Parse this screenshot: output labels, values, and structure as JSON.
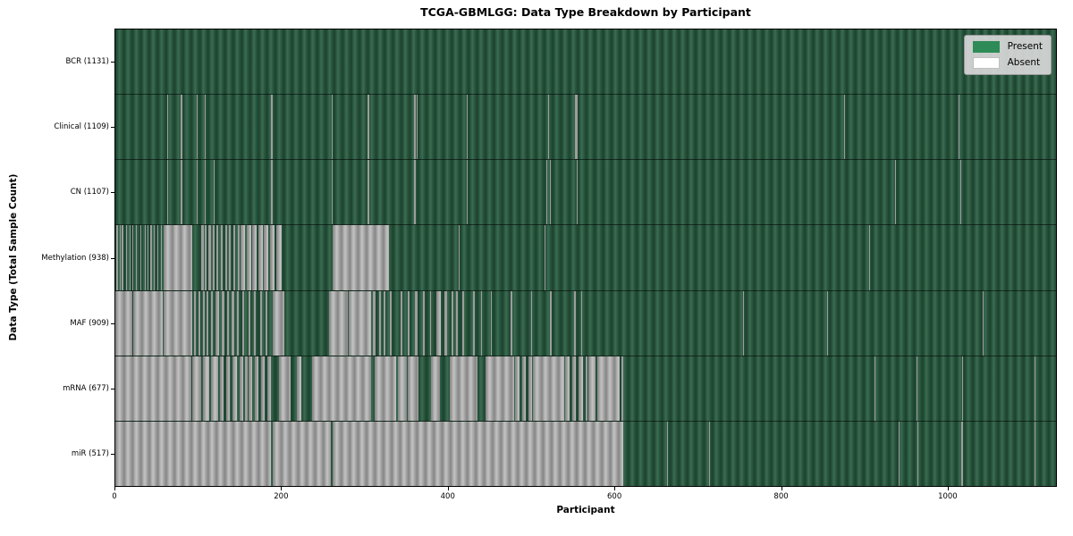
{
  "chart_data": {
    "type": "heatmap",
    "title": "TCGA-GBMLGG: Data Type Breakdown by Participant",
    "xlabel": "Participant",
    "ylabel": "Data Type (Total Sample Count)",
    "x_range": [
      0,
      1131
    ],
    "x_ticks": [
      0,
      200,
      400,
      600,
      800,
      1000
    ],
    "legend": [
      {
        "label": "Present",
        "color": "#2e8b57"
      },
      {
        "label": "Absent",
        "color": "#ffffff"
      }
    ],
    "colors": {
      "present_fill": "#2e8b57",
      "absent_fill": "#ffffff",
      "present_render_mid": "#2d5c43",
      "absent_render_mid": "#ababab",
      "axis": "#000000",
      "legend_bg": "#d8d8d8"
    },
    "rows": [
      {
        "name": "BCR",
        "label": "BCR (1131)",
        "present_count": 1131,
        "absent_segments": []
      },
      {
        "name": "Clinical",
        "label": "Clinical (1109)",
        "present_count": 1109,
        "absent_segments": [
          [
            62,
            63
          ],
          [
            78,
            79
          ],
          [
            80,
            81
          ],
          [
            98,
            99
          ],
          [
            107,
            108
          ],
          [
            187,
            189
          ],
          [
            260,
            261
          ],
          [
            303,
            305
          ],
          [
            359,
            361
          ],
          [
            362,
            363
          ],
          [
            423,
            424
          ],
          [
            520,
            521
          ],
          [
            553,
            556
          ],
          [
            876,
            877
          ],
          [
            1014,
            1015
          ]
        ]
      },
      {
        "name": "CN",
        "label": "CN (1107)",
        "present_count": 1107,
        "absent_segments": [
          [
            62,
            63
          ],
          [
            78,
            79
          ],
          [
            80,
            81
          ],
          [
            98,
            99
          ],
          [
            107,
            108
          ],
          [
            118,
            119
          ],
          [
            187,
            189
          ],
          [
            260,
            261
          ],
          [
            303,
            305
          ],
          [
            359,
            361
          ],
          [
            423,
            424
          ],
          [
            518,
            519
          ],
          [
            522,
            524
          ],
          [
            555,
            556
          ],
          [
            938,
            939
          ],
          [
            1016,
            1017
          ]
        ]
      },
      {
        "name": "Methylation",
        "label": "Methylation (938)",
        "present_count": 938,
        "absent_segments": [
          [
            1,
            3
          ],
          [
            5,
            6
          ],
          [
            8,
            10
          ],
          [
            13,
            14
          ],
          [
            17,
            18
          ],
          [
            20,
            22
          ],
          [
            25,
            26
          ],
          [
            30,
            31
          ],
          [
            35,
            37
          ],
          [
            39,
            40
          ],
          [
            42,
            44
          ],
          [
            46,
            47
          ],
          [
            50,
            52
          ],
          [
            55,
            56
          ],
          [
            58,
            93
          ],
          [
            103,
            106
          ],
          [
            108,
            110
          ],
          [
            112,
            115
          ],
          [
            117,
            119
          ],
          [
            121,
            124
          ],
          [
            127,
            129
          ],
          [
            132,
            134
          ],
          [
            137,
            139
          ],
          [
            142,
            144
          ],
          [
            147,
            149
          ],
          [
            151,
            156
          ],
          [
            158,
            163
          ],
          [
            165,
            170
          ],
          [
            172,
            177
          ],
          [
            179,
            184
          ],
          [
            186,
            191
          ],
          [
            193,
            200
          ],
          [
            261,
            329
          ],
          [
            413,
            414
          ],
          [
            516,
            517
          ],
          [
            906,
            907
          ]
        ]
      },
      {
        "name": "MAF",
        "label": "MAF (909)",
        "present_count": 909,
        "absent_segments": [
          [
            0,
            20
          ],
          [
            21,
            57
          ],
          [
            58,
            92
          ],
          [
            95,
            97
          ],
          [
            100,
            102
          ],
          [
            105,
            107
          ],
          [
            110,
            112
          ],
          [
            115,
            117
          ],
          [
            120,
            125
          ],
          [
            128,
            131
          ],
          [
            134,
            137
          ],
          [
            140,
            143
          ],
          [
            146,
            148
          ],
          [
            153,
            155
          ],
          [
            160,
            162
          ],
          [
            167,
            169
          ],
          [
            174,
            176
          ],
          [
            181,
            183
          ],
          [
            189,
            203
          ],
          [
            257,
            280
          ],
          [
            281,
            307
          ],
          [
            310,
            313
          ],
          [
            317,
            319
          ],
          [
            323,
            325
          ],
          [
            330,
            332
          ],
          [
            343,
            345
          ],
          [
            352,
            354
          ],
          [
            360,
            363
          ],
          [
            370,
            372
          ],
          [
            378,
            380
          ],
          [
            386,
            391
          ],
          [
            396,
            399
          ],
          [
            404,
            406
          ],
          [
            410,
            412
          ],
          [
            417,
            419
          ],
          [
            430,
            432
          ],
          [
            440,
            441
          ],
          [
            452,
            453
          ],
          [
            475,
            477
          ],
          [
            500,
            501
          ],
          [
            523,
            525
          ],
          [
            552,
            554
          ],
          [
            560,
            561
          ],
          [
            755,
            756
          ],
          [
            856,
            857
          ],
          [
            1043,
            1044
          ]
        ]
      },
      {
        "name": "mRNA",
        "label": "mRNA (677)",
        "present_count": 677,
        "absent_segments": [
          [
            0,
            91
          ],
          [
            92,
            103
          ],
          [
            105,
            113
          ],
          [
            115,
            124
          ],
          [
            126,
            130
          ],
          [
            133,
            138
          ],
          [
            141,
            146
          ],
          [
            149,
            154
          ],
          [
            156,
            159
          ],
          [
            160,
            165
          ],
          [
            168,
            172
          ],
          [
            175,
            180
          ],
          [
            183,
            187
          ],
          [
            197,
            211
          ],
          [
            218,
            224
          ],
          [
            237,
            307
          ],
          [
            312,
            338
          ],
          [
            340,
            350
          ],
          [
            352,
            364
          ],
          [
            379,
            390
          ],
          [
            402,
            435
          ],
          [
            445,
            480
          ],
          [
            481,
            486
          ],
          [
            489,
            494
          ],
          [
            497,
            501
          ],
          [
            502,
            540
          ],
          [
            541,
            546
          ],
          [
            549,
            554
          ],
          [
            557,
            562
          ],
          [
            565,
            568
          ],
          [
            569,
            577
          ],
          [
            580,
            606
          ],
          [
            608,
            611
          ],
          [
            913,
            914
          ],
          [
            963,
            964
          ],
          [
            1018,
            1019
          ],
          [
            1105,
            1106
          ]
        ]
      },
      {
        "name": "miR",
        "label": "miR (517)",
        "present_count": 517,
        "absent_segments": [
          [
            0,
            187
          ],
          [
            189,
            259
          ],
          [
            261,
            611
          ],
          [
            663,
            664
          ],
          [
            714,
            715
          ],
          [
            942,
            943
          ],
          [
            964,
            965
          ],
          [
            1017,
            1019
          ],
          [
            1105,
            1106
          ]
        ]
      }
    ]
  }
}
